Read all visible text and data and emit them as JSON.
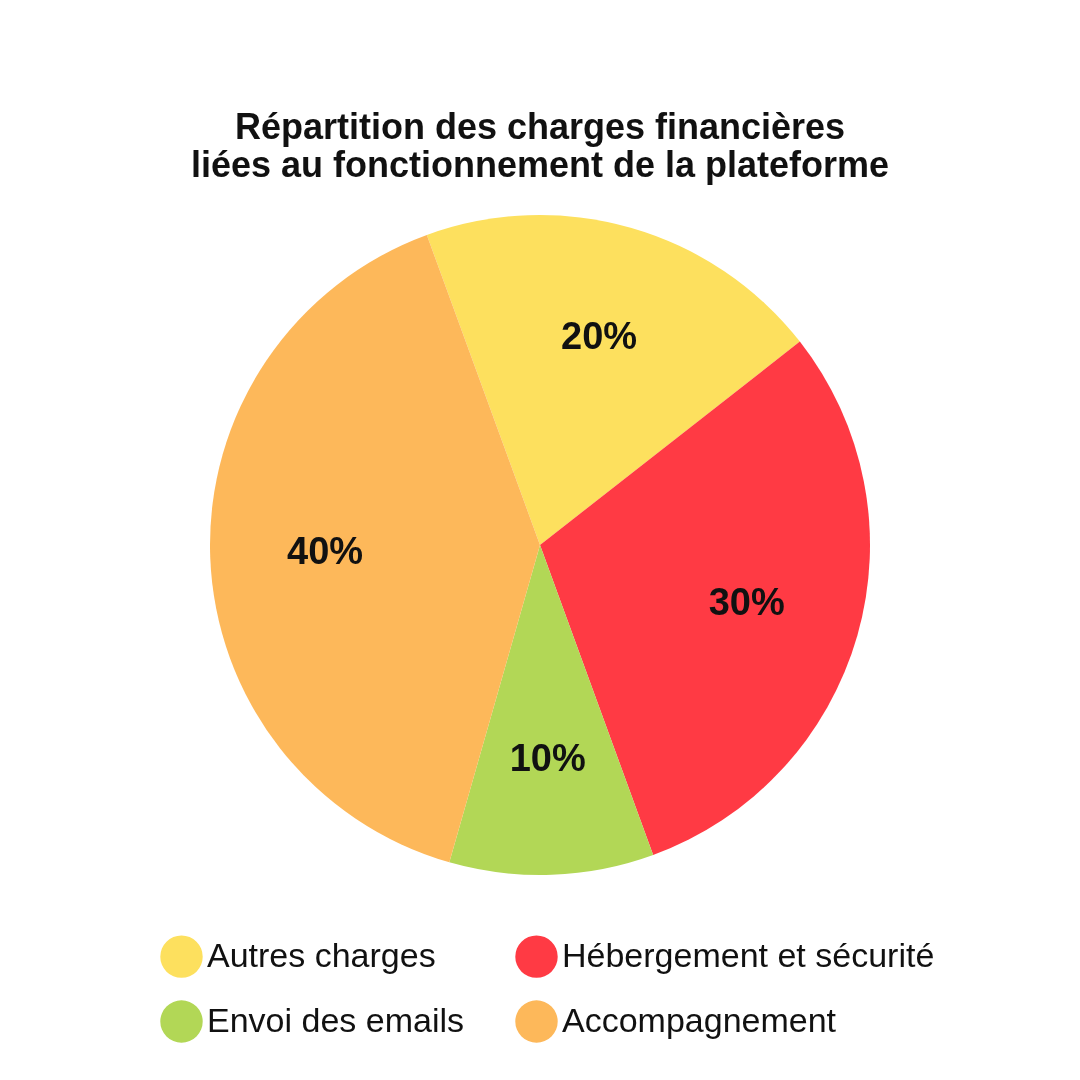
{
  "chart_data": {
    "type": "pie",
    "title": "Répartition des charges financières\nliées au fonctionnement de la plateforme",
    "categories": [
      "Autres charges",
      "Hébergement et sécurité",
      "Envoi des emails",
      "Accompagnement"
    ],
    "values": [
      20,
      30,
      10,
      40
    ],
    "colors": [
      "#fde05e",
      "#ff3a44",
      "#b2d756",
      "#fdb85a"
    ],
    "value_labels": [
      "20%",
      "30%",
      "10%",
      "40%"
    ],
    "legend": "bottom"
  }
}
